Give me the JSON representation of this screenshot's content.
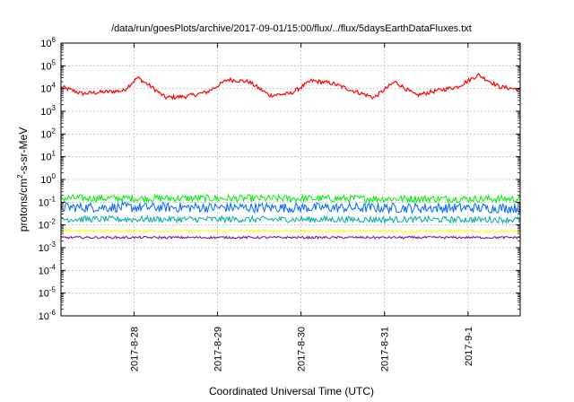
{
  "chart_data": {
    "type": "line",
    "title": "/data/run/goesPlots/archive/2017-09-01/15:00/flux/../flux/5daysEarthDataFluxes.txt",
    "xlabel": "Coordinated Universal Time (UTC)",
    "ylabel": {
      "base": "protons/cm",
      "sup": "2",
      "rest": "-s-sr-MeV"
    },
    "x_range": [
      "2017-08-27 03:00",
      "2017-09-01 15:00"
    ],
    "y_scale": "log",
    "ylim": [
      1e-06,
      1000000.0
    ],
    "grid": true,
    "x_ticks": [
      {
        "label": "2017-8-28",
        "t": "2017-08-28 00:00"
      },
      {
        "label": "2017-8-29",
        "t": "2017-08-29 00:00"
      },
      {
        "label": "2017-8-30",
        "t": "2017-08-30 00:00"
      },
      {
        "label": "2017-8-31",
        "t": "2017-08-31 00:00"
      },
      {
        "label": "2017-9-1",
        "t": "2017-09-01 00:00"
      }
    ],
    "y_ticks": [
      {
        "base": "10",
        "exp": "-6",
        "value": 1e-06
      },
      {
        "base": "10",
        "exp": "-5",
        "value": 1e-05
      },
      {
        "base": "10",
        "exp": "-4",
        "value": 0.0001
      },
      {
        "base": "10",
        "exp": "-3",
        "value": 0.001
      },
      {
        "base": "10",
        "exp": "-2",
        "value": 0.01
      },
      {
        "base": "10",
        "exp": "-1",
        "value": 0.1
      },
      {
        "base": "10",
        "exp": "0",
        "value": 1
      },
      {
        "base": "10",
        "exp": "1",
        "value": 10
      },
      {
        "base": "10",
        "exp": "2",
        "value": 100
      },
      {
        "base": "10",
        "exp": "3",
        "value": 1000
      },
      {
        "base": "10",
        "exp": "4",
        "value": 10000
      },
      {
        "base": "10",
        "exp": "5",
        "value": 100000
      },
      {
        "base": "10",
        "exp": "6",
        "value": 1000000
      }
    ],
    "series": [
      {
        "color": "#ff0000",
        "noise_exp": 0.09,
        "t": [
          "2017-08-27 03:00",
          "2017-08-27 09:00",
          "2017-08-27 15:00",
          "2017-08-27 21:00",
          "2017-08-28 01:00",
          "2017-08-28 05:00",
          "2017-08-28 09:00",
          "2017-08-28 15:00",
          "2017-08-28 21:00",
          "2017-08-29 03:00",
          "2017-08-29 09:00",
          "2017-08-29 15:00",
          "2017-08-29 21:00",
          "2017-08-30 03:00",
          "2017-08-30 09:00",
          "2017-08-30 15:00",
          "2017-08-30 21:00",
          "2017-08-31 03:00",
          "2017-08-31 09:00",
          "2017-08-31 15:00",
          "2017-08-31 21:00",
          "2017-09-01 03:00",
          "2017-09-01 09:00",
          "2017-09-01 15:00"
        ],
        "values": [
          12000,
          6000,
          7000,
          8000,
          30000,
          12000,
          4000,
          4500,
          7000,
          25000,
          20000,
          5000,
          6000,
          22000,
          17000,
          8000,
          4000,
          20000,
          5000,
          8000,
          12000,
          40000,
          12000,
          9000
        ]
      },
      {
        "color": "#00ee00",
        "t": [
          "2017-08-27 03:00",
          "2017-09-01 15:00"
        ],
        "values": [
          0.15,
          0.14
        ],
        "noise_exp": 0.16
      },
      {
        "color": "#0066ff",
        "t": [
          "2017-08-27 03:00",
          "2017-09-01 15:00"
        ],
        "values": [
          0.06,
          0.055
        ],
        "noise_exp": 0.22
      },
      {
        "color": "#00aaaa",
        "t": [
          "2017-08-27 03:00",
          "2017-09-01 15:00"
        ],
        "values": [
          0.018,
          0.017
        ],
        "noise_exp": 0.14
      },
      {
        "color": "#ffff00",
        "t": [
          "2017-08-27 03:00",
          "2017-09-01 15:00"
        ],
        "values": [
          0.0055,
          0.0052
        ],
        "noise_exp": 0.06
      },
      {
        "color": "#800080",
        "t": [
          "2017-08-27 03:00",
          "2017-09-01 15:00"
        ],
        "values": [
          0.0028,
          0.0028
        ],
        "noise_exp": 0.05
      }
    ]
  }
}
